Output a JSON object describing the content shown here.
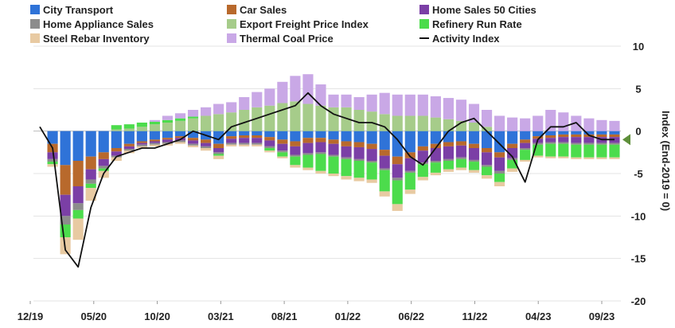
{
  "chart_data": {
    "type": "bar",
    "stacked": true,
    "title": "",
    "xlabel": "",
    "ylabel": "Index (End-2019 = 0)",
    "ylim": [
      -20,
      10
    ],
    "yticks": [
      10,
      5,
      0,
      -5,
      -10,
      -15,
      -20
    ],
    "xticks": [
      "12/19",
      "05/20",
      "10/20",
      "03/21",
      "08/21",
      "01/22",
      "06/22",
      "11/22",
      "04/23",
      "09/23"
    ],
    "legend_position": "top",
    "grid": {
      "horizontal": true,
      "vertical": false
    },
    "categories": [
      "2019-12",
      "2020-01",
      "2020-02",
      "2020-03",
      "2020-04",
      "2020-05",
      "2020-06",
      "2020-07",
      "2020-08",
      "2020-09",
      "2020-10",
      "2020-11",
      "2020-12",
      "2021-01",
      "2021-02",
      "2021-03",
      "2021-04",
      "2021-05",
      "2021-06",
      "2021-07",
      "2021-08",
      "2021-09",
      "2021-10",
      "2021-11",
      "2021-12",
      "2022-01",
      "2022-02",
      "2022-03",
      "2022-04",
      "2022-05",
      "2022-06",
      "2022-07",
      "2022-08",
      "2022-09",
      "2022-10",
      "2022-11",
      "2022-12",
      "2023-01",
      "2023-02",
      "2023-03",
      "2023-04",
      "2023-05",
      "2023-06",
      "2023-07",
      "2023-08",
      "2023-09"
    ],
    "series": [
      {
        "name": "City Transport",
        "color": "#2f73d8",
        "values": [
          0,
          -1.5,
          -4,
          -3.5,
          -3,
          -2.5,
          -2,
          -1.5,
          -1.2,
          -1,
          -0.8,
          -0.6,
          -0.8,
          -1,
          -1.5,
          -0.6,
          -0.5,
          -0.5,
          -0.7,
          -1,
          -1.2,
          -0.8,
          -0.8,
          -1,
          -1.2,
          -1.3,
          -1.5,
          -2.2,
          -3,
          -2.5,
          -1.8,
          -1.5,
          -1.3,
          -1.2,
          -1.5,
          -2,
          -2.5,
          -1.5,
          -1,
          -0.6,
          -0.5,
          -0.4,
          -0.4,
          -0.4,
          -0.4,
          -0.4
        ]
      },
      {
        "name": "Car Sales",
        "color": "#b8692c",
        "values": [
          0,
          -1,
          -3.5,
          -3,
          -1.5,
          -0.8,
          -0.4,
          -0.3,
          -0.2,
          -0.2,
          -0.2,
          -0.2,
          -0.3,
          -0.4,
          -0.5,
          -0.3,
          -0.3,
          -0.3,
          -0.4,
          -0.5,
          -0.6,
          -0.6,
          -0.5,
          -0.5,
          -0.6,
          -0.6,
          -0.6,
          -0.7,
          -0.9,
          -0.7,
          -0.5,
          -0.5,
          -0.5,
          -0.5,
          -0.5,
          -0.5,
          -0.6,
          -0.5,
          -0.4,
          -0.3,
          -0.3,
          -0.3,
          -0.3,
          -0.3,
          -0.3,
          -0.3
        ]
      },
      {
        "name": "Home Sales 50 Cities",
        "color": "#7b3fa6",
        "values": [
          0,
          -0.8,
          -2.5,
          -2,
          -1.2,
          -0.8,
          -0.5,
          -0.3,
          -0.2,
          -0.2,
          -0.3,
          -0.3,
          -0.4,
          -0.4,
          -0.5,
          -0.5,
          -0.6,
          -0.6,
          -0.7,
          -0.8,
          -1,
          -1.2,
          -1.2,
          -1.3,
          -1.3,
          -1.4,
          -1.4,
          -1.5,
          -1.6,
          -1.5,
          -1.4,
          -1.5,
          -1.5,
          -1.4,
          -1.4,
          -1.5,
          -1.6,
          -1.2,
          -0.6,
          -0.5,
          -0.5,
          -0.6,
          -0.7,
          -0.7,
          -0.7,
          -0.7
        ]
      },
      {
        "name": "Home Appliance Sales",
        "color": "#8c8c8c",
        "values": [
          0,
          -0.3,
          -1,
          -0.8,
          -0.5,
          -0.3,
          -0.2,
          -0.2,
          -0.2,
          -0.2,
          -0.2,
          -0.2,
          -0.2,
          -0.2,
          -0.2,
          -0.2,
          -0.2,
          -0.2,
          -0.2,
          -0.2,
          -0.2,
          -0.2,
          -0.2,
          -0.2,
          -0.2,
          -0.2,
          -0.2,
          -0.2,
          -0.3,
          -0.2,
          -0.2,
          -0.2,
          -0.2,
          -0.2,
          -0.2,
          -0.2,
          -0.3,
          -0.2,
          -0.2,
          -0.2,
          -0.2,
          -0.2,
          -0.2,
          -0.2,
          -0.2,
          -0.2
        ]
      },
      {
        "name": "Export Freight Price Index",
        "color": "#a6cc8a",
        "values": [
          0,
          0,
          0,
          0,
          0,
          0,
          0.2,
          0.3,
          0.5,
          0.8,
          1,
          1.2,
          1.5,
          1.8,
          2,
          2.2,
          2.5,
          2.8,
          3,
          3.3,
          3.5,
          3.2,
          3,
          2.8,
          2.8,
          2.5,
          2.3,
          2,
          1.8,
          1.8,
          1.8,
          1.6,
          1.4,
          1.2,
          1,
          0.5,
          0,
          0,
          0,
          0,
          0,
          0,
          0,
          0,
          0,
          0
        ]
      },
      {
        "name": "Refinery Run Rate",
        "color": "#4cdc4c",
        "values": [
          0,
          -0.3,
          -1.5,
          -1,
          -0.5,
          -0.3,
          0.5,
          0.5,
          0.5,
          0.3,
          0.3,
          0.3,
          0.2,
          0,
          -0.2,
          0,
          0,
          0,
          -0.3,
          -0.5,
          -1,
          -1.5,
          -2,
          -2,
          -2,
          -2,
          -2,
          -2.5,
          -2.8,
          -2,
          -1.5,
          -1.2,
          -1,
          -1,
          -1,
          -1,
          -1,
          -1,
          -1.2,
          -1.3,
          -1.5,
          -1.5,
          -1.5,
          -1.5,
          -1.5,
          -1.5
        ]
      },
      {
        "name": "Steel Rebar Inventory",
        "color": "#e8caa2",
        "values": [
          0,
          -0.3,
          -2,
          -2.5,
          -1.5,
          -0.8,
          -0.4,
          -0.3,
          -0.2,
          -0.2,
          -0.2,
          -0.2,
          -0.2,
          -0.3,
          -0.4,
          -0.2,
          -0.2,
          -0.2,
          -0.2,
          -0.2,
          -0.3,
          -0.3,
          -0.3,
          -0.3,
          -0.4,
          -0.4,
          -0.4,
          -0.6,
          -0.8,
          -0.5,
          -0.4,
          -0.3,
          -0.3,
          -0.3,
          -0.3,
          -0.4,
          -0.5,
          -0.4,
          -0.2,
          -0.2,
          -0.2,
          -0.2,
          -0.2,
          -0.2,
          -0.2,
          -0.2
        ]
      },
      {
        "name": "Thermal Coal Price",
        "color": "#c9a8e6",
        "values": [
          0,
          0,
          0,
          0,
          0,
          0,
          0,
          0,
          0,
          0.2,
          0.5,
          0.6,
          0.8,
          1,
          1.2,
          1.2,
          1.5,
          1.8,
          2,
          2.5,
          3,
          3.5,
          2.5,
          1.5,
          1.5,
          1.5,
          2,
          2.5,
          2.5,
          2.5,
          2.5,
          2.5,
          2.5,
          2.5,
          2.2,
          2,
          1.8,
          1.6,
          1.5,
          1.8,
          2.5,
          2.2,
          1.8,
          1.5,
          1.3,
          1.2
        ]
      }
    ],
    "activity_index": {
      "name": "Activity Index",
      "color": "#111111",
      "values": [
        0.5,
        -2,
        -14,
        -16,
        -9,
        -5,
        -3,
        -2.5,
        -2,
        -2,
        -1.5,
        -1,
        0,
        -0.5,
        -1,
        0.5,
        1,
        1.5,
        2,
        2.5,
        3,
        4.5,
        3,
        2,
        1.5,
        1,
        1,
        0.5,
        -1,
        -3,
        -4,
        -2,
        0,
        1,
        1.5,
        0,
        -1.5,
        -3,
        -6,
        -1,
        0.5,
        0.5,
        1,
        -0.5,
        -1,
        -1
      ]
    }
  },
  "legend": [
    {
      "label": "City Transport",
      "color": "#2f73d8"
    },
    {
      "label": "Car Sales",
      "color": "#b8692c"
    },
    {
      "label": "Home Sales 50 Cities",
      "color": "#7b3fa6"
    },
    {
      "label": "Home Appliance Sales",
      "color": "#8c8c8c"
    },
    {
      "label": "Export Freight Price Index",
      "color": "#a6cc8a"
    },
    {
      "label": "Refinery Run Rate",
      "color": "#4cdc4c"
    },
    {
      "label": "Steel Rebar Inventory",
      "color": "#e8caa2"
    },
    {
      "label": "Thermal Coal Price",
      "color": "#c9a8e6"
    },
    {
      "label": "Activity Index",
      "color": "#111111",
      "kind": "line"
    }
  ],
  "latest_marker_color": "#5e8f3a"
}
